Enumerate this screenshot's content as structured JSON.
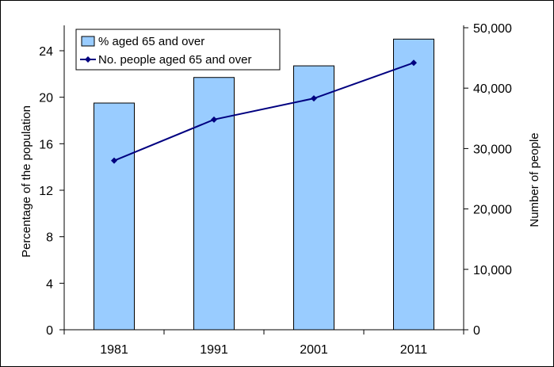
{
  "chart_data": {
    "type": "bar",
    "categories": [
      "1981",
      "1991",
      "2001",
      "2011"
    ],
    "series": [
      {
        "name": "% aged 65 and over",
        "type": "bar",
        "axis": "left",
        "values": [
          19.5,
          21.7,
          22.7,
          25.0
        ],
        "color": "#99ccff"
      },
      {
        "name": "No. people aged 65 and over",
        "type": "line",
        "axis": "right",
        "values": [
          28000,
          34800,
          38300,
          44200
        ],
        "color": "#000080"
      }
    ],
    "ylabel": "Percentage of the population",
    "y2label": "Number of people",
    "ylim": [
      0,
      26
    ],
    "y2lim": [
      0,
      50000
    ],
    "yticks": [
      "0",
      "4",
      "8",
      "12",
      "16",
      "20",
      "24"
    ],
    "y2ticks": [
      "0",
      "10,000",
      "20,000",
      "30,000",
      "40,000",
      "50,000"
    ],
    "grid": false,
    "legend_position": "top-left"
  }
}
